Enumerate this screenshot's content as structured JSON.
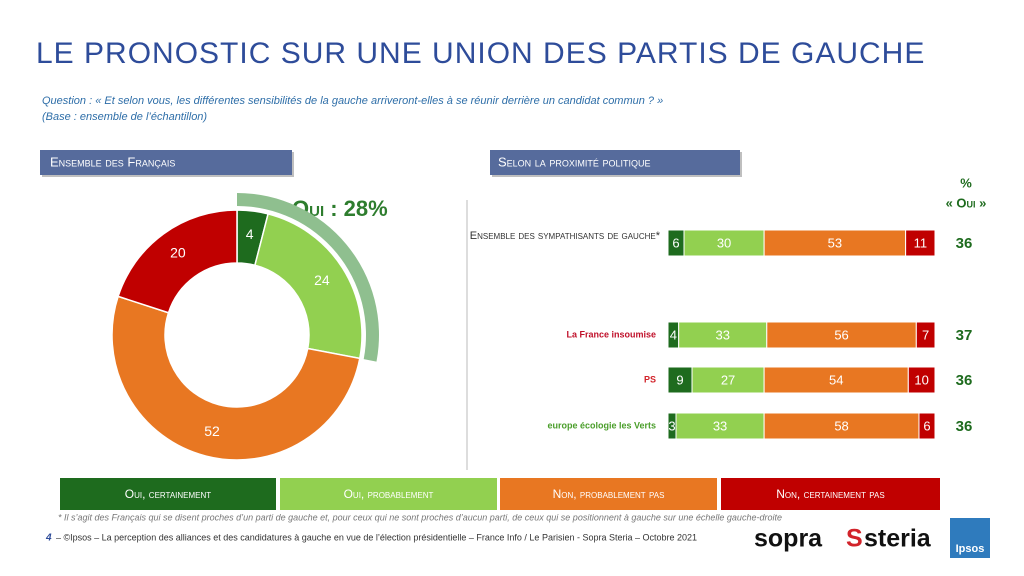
{
  "title": "LE PRONOSTIC SUR UNE UNION DES PARTIS DE GAUCHE",
  "question": "Question : « Et selon vous, les différentes sensibilités de la gauche arriveront-elles à se réunir derrière un candidat commun ? »",
  "base": "(Base : ensemble de l’échantillon)",
  "chart_data": [
    {
      "type": "pie",
      "title": "Ensemble des Français",
      "values": [
        4,
        24,
        52,
        20
      ],
      "colors": [
        "#1e6b1e",
        "#92d050",
        "#e87722",
        "#c00000"
      ],
      "annotation": {
        "value": 28,
        "label": "Oui : 28%",
        "color": "#8fbf8f"
      }
    },
    {
      "type": "bar",
      "title": "Selon la proximité politique",
      "categories": [
        "Ensemble des sympathisants de gauche*",
        "La France insoumise",
        "PS",
        "europe écologie les Verts"
      ],
      "xlim": [
        0,
        100
      ],
      "series": [
        {
          "name": "Oui, certainement",
          "color": "#1e6b1e",
          "values": [
            6,
            4,
            9,
            3
          ]
        },
        {
          "name": "Oui, probablement",
          "color": "#92d050",
          "values": [
            30,
            33,
            27,
            33
          ]
        },
        {
          "name": "Non, probablement pas",
          "color": "#e87722",
          "values": [
            53,
            56,
            54,
            58
          ]
        },
        {
          "name": "Non, certainement pas",
          "color": "#c00000",
          "values": [
            11,
            7,
            10,
            6
          ]
        }
      ],
      "totals_header": [
        "%",
        "« Oui »"
      ],
      "totals": [
        36,
        37,
        36,
        36
      ]
    }
  ],
  "footnote": "* Il s’agit des Français qui se disent proches d’un parti de gauche et, pour ceux qui ne sont proches d’aucun parti, de ceux qui se positionnent à gauche sur une échelle gauche-droite",
  "page_number": "4",
  "footer": "– ©Ipsos – La perception des alliances et des candidatures à gauche en vue de l’élection présidentielle – France Info / Le Parisien - Sopra Steria – Octobre 2021",
  "logo_left": "sopra",
  "logo_right": "steria",
  "ipsos": "Ipsos"
}
